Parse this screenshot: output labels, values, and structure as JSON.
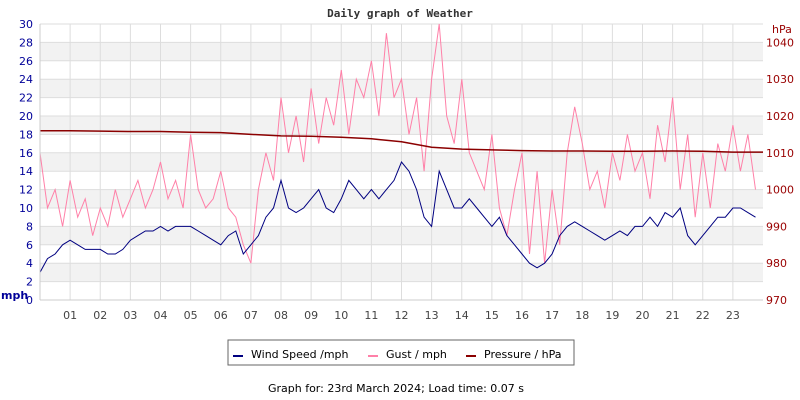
{
  "chart_data": {
    "type": "line",
    "title": "Daily graph of Weather",
    "left_axis": {
      "unit_label": "mph",
      "range": [
        0,
        30
      ],
      "ticks": [
        0,
        2,
        4,
        6,
        8,
        10,
        12,
        14,
        16,
        18,
        20,
        22,
        24,
        26,
        28,
        30
      ],
      "color": "#000099"
    },
    "right_axis": {
      "unit_label": "hPa",
      "ticks": [
        970,
        980,
        990,
        1000,
        1010,
        1020,
        1030,
        1040
      ],
      "color": "#990000"
    },
    "x_axis": {
      "range_hours": [
        0,
        24
      ],
      "tick_labels": [
        "01",
        "02",
        "03",
        "04",
        "05",
        "06",
        "07",
        "08",
        "09",
        "10",
        "11",
        "12",
        "13",
        "14",
        "15",
        "16",
        "17",
        "18",
        "19",
        "20",
        "21",
        "22",
        "23"
      ]
    },
    "grid": true,
    "legend_placement": "bottom",
    "series": [
      {
        "name": "Wind Speed /mph",
        "color": "#000080",
        "axis": "left",
        "interval_hours": 0.25,
        "values": [
          3,
          4.5,
          5,
          6,
          6.5,
          6,
          5.5,
          5.5,
          5.5,
          5,
          5,
          5.5,
          6.5,
          7,
          7.5,
          7.5,
          8,
          7.5,
          8,
          8,
          8,
          7.5,
          7,
          6.5,
          6,
          7,
          7.5,
          5,
          6,
          7,
          9,
          10,
          13,
          10,
          9.5,
          10,
          11,
          12,
          10,
          9.5,
          11,
          13,
          12,
          11,
          12,
          11,
          12,
          13,
          15,
          14,
          12,
          9,
          8,
          14,
          12,
          10,
          10,
          11,
          10,
          9,
          8,
          9,
          7,
          6,
          5,
          4,
          3.5,
          4,
          5,
          7,
          8,
          8.5,
          8,
          7.5,
          7,
          6.5,
          7,
          7.5,
          7,
          8,
          8,
          9,
          8,
          9.5,
          9,
          10,
          7,
          6,
          7,
          8,
          9,
          9,
          10,
          10,
          9.5,
          9
        ]
      },
      {
        "name": "Gust / mph",
        "color": "#ff80a8",
        "axis": "left",
        "interval_hours": 0.25,
        "values": [
          16,
          10,
          12,
          8,
          13,
          9,
          11,
          7,
          10,
          8,
          12,
          9,
          11,
          13,
          10,
          12,
          15,
          11,
          13,
          10,
          18,
          12,
          10,
          11,
          14,
          10,
          9,
          6,
          4,
          12,
          16,
          13,
          22,
          16,
          20,
          15,
          23,
          17,
          22,
          19,
          25,
          18,
          24,
          22,
          26,
          20,
          29,
          22,
          24,
          18,
          22,
          14,
          24,
          30,
          20,
          17,
          24,
          16,
          14,
          12,
          18,
          10,
          7,
          12,
          16,
          5,
          14,
          4,
          12,
          6,
          16,
          21,
          17,
          12,
          14,
          10,
          16,
          13,
          18,
          14,
          16,
          11,
          19,
          15,
          22,
          12,
          18,
          9,
          16,
          10,
          17,
          14,
          19,
          14,
          18,
          12
        ]
      },
      {
        "name": "Pressure / hPa",
        "color": "#8b0000",
        "axis": "right",
        "interval_hours": 1,
        "values": [
          1016,
          1016,
          1015.9,
          1015.8,
          1015.8,
          1015.6,
          1015.5,
          1015,
          1014.6,
          1014.5,
          1014.2,
          1013.8,
          1013,
          1011.5,
          1011,
          1010.8,
          1010.6,
          1010.5,
          1010.5,
          1010.4,
          1010.4,
          1010.5,
          1010.4,
          1010.2,
          1010.2
        ]
      }
    ]
  },
  "footer": "Graph for: 23rd March 2024; Load time: 0.07 s"
}
